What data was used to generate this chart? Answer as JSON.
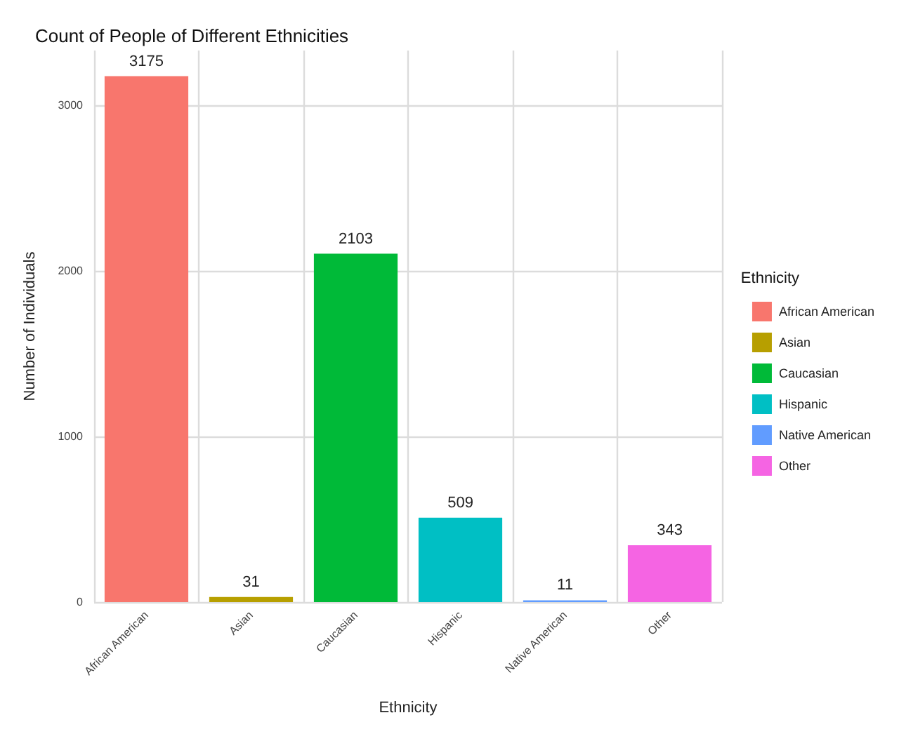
{
  "chart_data": {
    "type": "bar",
    "title": "Count of People of Different Ethnicities",
    "xlabel": "Ethnicity",
    "ylabel": "Number of Individuals",
    "legend_title": "Ethnicity",
    "categories": [
      "African American",
      "Asian",
      "Caucasian",
      "Hispanic",
      "Native American",
      "Other"
    ],
    "series": [
      {
        "name": "African American",
        "color": "#f8766d",
        "values": [
          3175,
          null,
          null,
          null,
          null,
          null
        ]
      },
      {
        "name": "Asian",
        "color": "#b79f00",
        "values": [
          null,
          31,
          null,
          null,
          null,
          null
        ]
      },
      {
        "name": "Caucasian",
        "color": "#00ba38",
        "values": [
          null,
          null,
          2103,
          null,
          null,
          null
        ]
      },
      {
        "name": "Hispanic",
        "color": "#00bfc4",
        "values": [
          null,
          null,
          null,
          509,
          null,
          null
        ]
      },
      {
        "name": "Native American",
        "color": "#619cff",
        "values": [
          null,
          null,
          null,
          null,
          11,
          null
        ]
      },
      {
        "name": "Other",
        "color": "#f564e3",
        "values": [
          null,
          null,
          null,
          null,
          null,
          343
        ]
      }
    ],
    "ylim": [
      0,
      3330
    ],
    "yticks": [
      0,
      1000,
      2000,
      3000
    ],
    "grid": true,
    "legend": "right",
    "data_labels": true
  }
}
